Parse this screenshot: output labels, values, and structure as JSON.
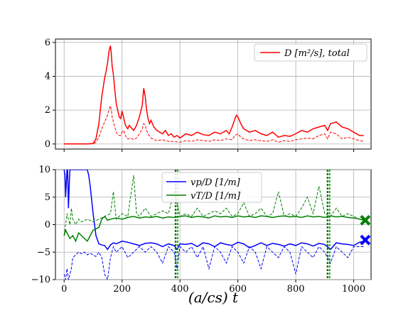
{
  "chart_data": [
    {
      "type": "line",
      "xlim": [
        -30,
        1060
      ],
      "ylim": [
        -0.3,
        6.2
      ],
      "yticks": [
        0,
        2,
        4,
        6
      ],
      "xticks": [
        0,
        200,
        400,
        600,
        800,
        1000
      ],
      "grid": true,
      "legend": {
        "position": "top-right",
        "entries": [
          "D [m²/s], total"
        ]
      },
      "colors": {
        "total": "#ff0000",
        "dashed": "#ff0000"
      },
      "series": [
        {
          "name": "D [m²/s], total",
          "style": "solid",
          "x": [
            0,
            80,
            100,
            110,
            120,
            130,
            140,
            145,
            150,
            155,
            160,
            163,
            166,
            170,
            175,
            180,
            185,
            190,
            195,
            200,
            205,
            210,
            215,
            220,
            225,
            230,
            240,
            250,
            260,
            270,
            275,
            280,
            285,
            290,
            295,
            300,
            310,
            320,
            330,
            340,
            350,
            360,
            370,
            380,
            390,
            400,
            420,
            440,
            460,
            480,
            500,
            520,
            540,
            560,
            570,
            580,
            590,
            595,
            600,
            610,
            620,
            640,
            660,
            680,
            700,
            720,
            740,
            760,
            780,
            800,
            820,
            840,
            860,
            880,
            900,
            910,
            920,
            940,
            960,
            980,
            1000,
            1020,
            1035
          ],
          "y": [
            0,
            0,
            0.03,
            0.3,
            1.2,
            2.8,
            3.9,
            4.3,
            4.8,
            5.5,
            5.8,
            5.3,
            4.6,
            4.1,
            3.2,
            2.4,
            2.0,
            1.6,
            1.5,
            1.95,
            1.6,
            1.2,
            1.0,
            0.9,
            1.1,
            1.0,
            0.8,
            1.1,
            1.6,
            2.3,
            3.3,
            2.8,
            2.0,
            1.5,
            1.2,
            1.4,
            1.0,
            0.8,
            0.7,
            0.6,
            0.8,
            0.5,
            0.6,
            0.4,
            0.5,
            0.35,
            0.6,
            0.5,
            0.7,
            0.55,
            0.5,
            0.7,
            0.6,
            0.8,
            0.6,
            1.0,
            1.5,
            1.7,
            1.6,
            1.2,
            0.9,
            0.7,
            0.8,
            0.6,
            0.5,
            0.7,
            0.4,
            0.5,
            0.45,
            0.6,
            0.8,
            0.7,
            0.9,
            1.0,
            1.1,
            0.8,
            1.2,
            1.3,
            1.0,
            0.9,
            0.7,
            0.5,
            0.5
          ]
        },
        {
          "name": "",
          "style": "dashed",
          "x": [
            0,
            80,
            100,
            110,
            120,
            130,
            140,
            150,
            155,
            160,
            163,
            166,
            170,
            175,
            180,
            185,
            190,
            195,
            200,
            205,
            210,
            215,
            220,
            230,
            240,
            250,
            260,
            270,
            275,
            280,
            285,
            290,
            300,
            320,
            340,
            360,
            380,
            400,
            420,
            440,
            460,
            480,
            500,
            520,
            540,
            560,
            580,
            590,
            600,
            610,
            620,
            640,
            660,
            680,
            700,
            720,
            740,
            760,
            780,
            800,
            820,
            840,
            860,
            880,
            900,
            910,
            920,
            940,
            960,
            980,
            1000,
            1020,
            1035
          ],
          "y": [
            0,
            0,
            0.01,
            0.1,
            0.4,
            0.9,
            1.3,
            1.7,
            2.05,
            2.25,
            2.0,
            1.6,
            1.3,
            1.0,
            0.7,
            0.55,
            0.5,
            0.5,
            0.7,
            0.8,
            0.6,
            0.35,
            0.3,
            0.35,
            0.25,
            0.35,
            0.6,
            0.9,
            1.2,
            1.1,
            0.8,
            0.6,
            0.35,
            0.2,
            0.25,
            0.15,
            0.15,
            0.1,
            0.2,
            0.15,
            0.25,
            0.2,
            0.15,
            0.25,
            0.2,
            0.3,
            0.25,
            0.5,
            0.6,
            0.4,
            0.3,
            0.2,
            0.25,
            0.2,
            0.15,
            0.25,
            0.1,
            0.2,
            0.15,
            0.25,
            0.3,
            0.35,
            0.3,
            0.5,
            0.6,
            0.3,
            0.7,
            0.6,
            0.3,
            0.4,
            0.3,
            0.2,
            0.15
          ]
        }
      ]
    },
    {
      "type": "line",
      "xlim": [
        -30,
        1060
      ],
      "ylim": [
        -10,
        10
      ],
      "yticks": [
        -10,
        -5,
        0,
        5,
        10
      ],
      "xticks": [
        0,
        200,
        400,
        600,
        800,
        1000
      ],
      "xlabel": "(a/cs) t",
      "grid": true,
      "legend": {
        "position": "top-center",
        "entries": [
          "vp/D [1/m]",
          "vT/D [1/m]"
        ]
      },
      "colors": {
        "vp": "#0000ff",
        "vT": "#008000"
      },
      "series": [
        {
          "name": "vp/D [1/m]",
          "style": "solid",
          "x": [
            0,
            3,
            5,
            8,
            10,
            12,
            15,
            18,
            20,
            25,
            30,
            40,
            50,
            60,
            70,
            80,
            85,
            90,
            100,
            110,
            120,
            130,
            140,
            150,
            160,
            170,
            180,
            200,
            220,
            240,
            260,
            280,
            300,
            320,
            340,
            360,
            380,
            390,
            400,
            420,
            440,
            460,
            480,
            500,
            520,
            540,
            560,
            580,
            600,
            620,
            640,
            660,
            680,
            700,
            720,
            740,
            760,
            780,
            800,
            820,
            840,
            860,
            880,
            900,
            920,
            940,
            960,
            980,
            1000,
            1020,
            1035
          ],
          "y": [
            10,
            9,
            5,
            8,
            10,
            10,
            3,
            8,
            10,
            10,
            10,
            10,
            10,
            10,
            10,
            10,
            9,
            7,
            2,
            -2,
            -3.5,
            -3.7,
            -3.8,
            -4.5,
            -3.7,
            -3.3,
            -3.5,
            -3,
            -3.2,
            -3.5,
            -3.8,
            -3.4,
            -3.3,
            -3.5,
            -4,
            -3.5,
            -3.8,
            -4.5,
            -3.5,
            -3.6,
            -3.4,
            -4,
            -3.3,
            -3.5,
            -4,
            -3.3,
            -3.6,
            -3.8,
            -3.2,
            -3.5,
            -4.2,
            -3.8,
            -3.3,
            -3.8,
            -3.4,
            -3.6,
            -3.9,
            -3.5,
            -3.8,
            -3.3,
            -3.5,
            -3.9,
            -3.4,
            -3.6,
            -4.5,
            -3.3,
            -3.5,
            -3.6,
            -3.8,
            -3.2,
            -3
          ]
        },
        {
          "name": "",
          "style": "dashed",
          "x": [
            0,
            5,
            10,
            15,
            20,
            25,
            30,
            40,
            50,
            60,
            70,
            80,
            90,
            100,
            110,
            120,
            130,
            140,
            150,
            160,
            170,
            180,
            200,
            220,
            240,
            260,
            280,
            300,
            320,
            340,
            360,
            380,
            390,
            400,
            420,
            440,
            460,
            480,
            500,
            520,
            540,
            560,
            580,
            600,
            620,
            640,
            660,
            680,
            700,
            720,
            740,
            760,
            780,
            800,
            820,
            840,
            860,
            880,
            900,
            920,
            940,
            960,
            980,
            1000,
            1020,
            1035
          ],
          "y": [
            -9,
            -10,
            -8,
            -10,
            -9,
            -8,
            -6,
            -5.5,
            -5,
            -5.3,
            -5,
            -5.5,
            -5.2,
            -5.5,
            -5.8,
            -5,
            -6,
            -9,
            -10,
            -6,
            -4,
            -5,
            -4,
            -6,
            -5,
            -4,
            -5,
            -4,
            -5,
            -7,
            -4,
            -5,
            -8,
            -4,
            -5,
            -4,
            -6,
            -4,
            -8,
            -4,
            -5,
            -7,
            -4,
            -5,
            -7,
            -4,
            -5,
            -8,
            -4,
            -5,
            -6,
            -4,
            -5,
            -9,
            -4,
            -5,
            -6,
            -4,
            -5,
            -7,
            -4,
            -5,
            -6,
            -4,
            -4,
            -4
          ]
        },
        {
          "name": "vT/D [1/m]",
          "style": "solid",
          "x": [
            0,
            5,
            10,
            15,
            20,
            30,
            40,
            50,
            60,
            80,
            100,
            120,
            130,
            140,
            150,
            160,
            180,
            200,
            220,
            240,
            260,
            280,
            300,
            320,
            340,
            360,
            380,
            400,
            420,
            440,
            460,
            480,
            500,
            520,
            540,
            560,
            580,
            600,
            620,
            640,
            660,
            680,
            700,
            720,
            740,
            760,
            780,
            800,
            820,
            840,
            860,
            880,
            900,
            920,
            940,
            960,
            980,
            1000,
            1020,
            1035
          ],
          "y": [
            -2,
            -1,
            -1.5,
            -2,
            -2.5,
            -2,
            -3,
            -1.5,
            -2,
            -3,
            -1,
            -0.5,
            1,
            1.5,
            0.8,
            1,
            1.2,
            1,
            1.3,
            1.5,
            1.2,
            1.4,
            1.3,
            1.5,
            1.2,
            1.4,
            1.3,
            1.5,
            1.6,
            1.3,
            1.5,
            1.4,
            1.2,
            1.6,
            1.4,
            1.5,
            1.3,
            1.6,
            1.4,
            1.5,
            1.3,
            1.6,
            1.5,
            1.3,
            1.5,
            1.6,
            1.4,
            1.5,
            1.3,
            1.6,
            1.4,
            1.5,
            1.3,
            1.6,
            1.4,
            1.5,
            1.3,
            1.2,
            1.0,
            0.8
          ]
        },
        {
          "name": "",
          "style": "dashed",
          "x": [
            0,
            5,
            10,
            15,
            20,
            25,
            30,
            40,
            50,
            60,
            80,
            100,
            120,
            140,
            160,
            170,
            180,
            190,
            200,
            220,
            240,
            250,
            260,
            280,
            300,
            320,
            340,
            360,
            380,
            400,
            420,
            440,
            460,
            480,
            500,
            520,
            540,
            560,
            580,
            600,
            620,
            640,
            660,
            680,
            700,
            720,
            740,
            760,
            780,
            800,
            820,
            840,
            860,
            880,
            900,
            920,
            940,
            960,
            980,
            1000,
            1020,
            1035
          ],
          "y": [
            -2,
            0,
            2,
            1,
            0,
            3,
            1,
            0,
            1,
            0.5,
            1,
            0.5,
            1,
            1.5,
            2,
            6,
            1,
            1.5,
            2,
            1.5,
            9,
            2,
            1.5,
            3,
            1.5,
            2,
            2.5,
            2,
            6,
            1.5,
            2,
            1.5,
            3,
            1.5,
            2,
            2.5,
            2,
            3,
            1.5,
            2,
            4,
            1.5,
            2,
            3,
            1.5,
            2,
            6,
            1.5,
            2,
            1.5,
            3,
            5,
            2,
            7,
            2,
            1.5,
            3,
            1.5,
            2,
            1.5,
            1,
            1
          ]
        }
      ],
      "vertical_markers": [
        {
          "x": 385,
          "color": "#008000"
        },
        {
          "x": 910,
          "color": "#008000"
        }
      ],
      "end_markers": [
        {
          "x": 1040,
          "y": 0.8,
          "color": "#008000",
          "symbol": "cross"
        },
        {
          "x": 1040,
          "y": -2.8,
          "color": "#0000ff",
          "symbol": "cross"
        }
      ]
    }
  ],
  "labels": {
    "top_legend": "D [m²/s], total",
    "bottom_legend_vp": "vp/D [1/m]",
    "bottom_legend_vT": "vT/D [1/m]",
    "xlabel": "(a/cs) t"
  }
}
